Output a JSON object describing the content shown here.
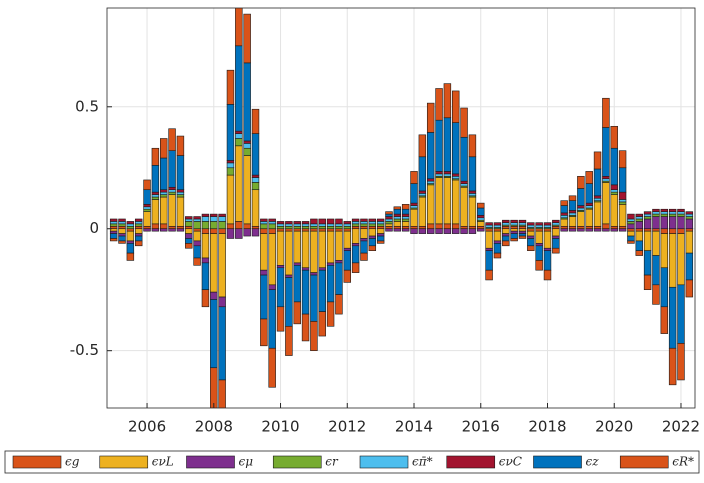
{
  "chart_data": {
    "type": "stacked-bar",
    "grid": true,
    "xlim": [
      2004.8,
      2022.42
    ],
    "ylim": [
      -0.735,
      0.905
    ],
    "xticks": [
      2006,
      2008,
      2010,
      2012,
      2014,
      2016,
      2018,
      2020,
      2022
    ],
    "yticks": [
      -0.5,
      0,
      0.5
    ],
    "x": [
      2005,
      2005.25,
      2005.5,
      2005.75,
      2006,
      2006.25,
      2006.5,
      2006.75,
      2007,
      2007.25,
      2007.5,
      2007.75,
      2008,
      2008.25,
      2008.5,
      2008.75,
      2009,
      2009.25,
      2009.5,
      2009.75,
      2010,
      2010.25,
      2010.5,
      2010.75,
      2011,
      2011.25,
      2011.5,
      2011.75,
      2012,
      2012.25,
      2012.5,
      2012.75,
      2013,
      2013.25,
      2013.5,
      2013.75,
      2014,
      2014.25,
      2014.5,
      2014.75,
      2015,
      2015.25,
      2015.5,
      2015.75,
      2016,
      2016.25,
      2016.5,
      2016.75,
      2017,
      2017.25,
      2017.5,
      2017.75,
      2018,
      2018.25,
      2018.5,
      2018.75,
      2019,
      2019.25,
      2019.5,
      2019.75,
      2020,
      2020.25,
      2020.5,
      2020.75,
      2021,
      2021.25,
      2021.5,
      2021.75,
      2022,
      2022.25
    ],
    "series": [
      {
        "name": "ϵg",
        "color": "#d95319",
        "values": [
          0.01,
          0.01,
          -0.01,
          0.01,
          0.01,
          0.02,
          0.02,
          0.01,
          0.01,
          0.01,
          -0.01,
          -0.02,
          -0.02,
          -0.02,
          0.02,
          0.03,
          0.02,
          0.01,
          -0.02,
          -0.02,
          -0.01,
          -0.01,
          -0.01,
          -0.01,
          -0.01,
          -0.01,
          -0.01,
          -0.01,
          -0.01,
          0.01,
          0.01,
          0.01,
          0.01,
          0.01,
          0.01,
          0.01,
          0.01,
          0.01,
          0.02,
          0.02,
          0.02,
          0.02,
          0.01,
          0.01,
          0.01,
          -0.01,
          -0.01,
          0.01,
          0.01,
          0.01,
          -0.01,
          -0.01,
          -0.01,
          0.01,
          0.01,
          0.01,
          0.01,
          0.01,
          0.01,
          0.02,
          0.01,
          0.01,
          -0.01,
          -0.01,
          -0.01,
          -0.01,
          -0.02,
          -0.02,
          -0.02,
          -0.01
        ]
      },
      {
        "name": "ϵνL",
        "color": "#edb120",
        "values": [
          -0.01,
          -0.02,
          -0.04,
          -0.02,
          0.06,
          0.1,
          0.11,
          0.13,
          0.12,
          -0.02,
          -0.04,
          -0.1,
          -0.24,
          -0.26,
          0.2,
          0.31,
          0.28,
          0.15,
          -0.15,
          -0.21,
          -0.14,
          -0.18,
          -0.13,
          -0.15,
          -0.17,
          -0.15,
          -0.13,
          -0.12,
          -0.07,
          -0.06,
          -0.04,
          -0.03,
          -0.02,
          0.01,
          0.02,
          0.02,
          0.07,
          0.12,
          0.16,
          0.19,
          0.19,
          0.18,
          0.16,
          0.12,
          0.02,
          -0.07,
          -0.04,
          -0.02,
          -0.01,
          -0.01,
          -0.02,
          -0.05,
          -0.07,
          -0.03,
          0.03,
          0.04,
          0.06,
          0.07,
          0.1,
          0.17,
          0.13,
          0.09,
          -0.02,
          -0.04,
          -0.08,
          -0.1,
          -0.14,
          -0.22,
          -0.21,
          -0.09
        ]
      },
      {
        "name": "ϵμ",
        "color": "#7e2f8e",
        "values": [
          -0.01,
          -0.01,
          -0.01,
          -0.01,
          -0.01,
          -0.01,
          -0.01,
          -0.01,
          -0.01,
          -0.02,
          -0.02,
          -0.02,
          -0.03,
          -0.04,
          -0.04,
          -0.04,
          -0.03,
          -0.03,
          -0.02,
          -0.02,
          -0.01,
          -0.01,
          -0.01,
          -0.01,
          -0.01,
          -0.01,
          -0.01,
          -0.01,
          -0.01,
          -0.01,
          -0.01,
          -0.01,
          -0.01,
          -0.01,
          -0.01,
          -0.01,
          -0.02,
          -0.02,
          -0.02,
          -0.02,
          -0.02,
          -0.02,
          -0.02,
          -0.02,
          -0.01,
          -0.01,
          -0.01,
          -0.01,
          -0.01,
          -0.01,
          -0.01,
          -0.01,
          -0.01,
          -0.01,
          -0.01,
          -0.01,
          -0.01,
          -0.01,
          -0.01,
          -0.01,
          -0.01,
          -0.01,
          0.02,
          0.03,
          0.04,
          0.05,
          0.05,
          0.05,
          0.05,
          0.04
        ]
      },
      {
        "name": "ϵr",
        "color": "#77ac30",
        "values": [
          0.01,
          0.01,
          0.01,
          0.01,
          0.01,
          0.01,
          0.01,
          0.01,
          0.01,
          0.02,
          0.03,
          0.03,
          0.03,
          0.03,
          0.03,
          0.03,
          0.03,
          0.03,
          0.02,
          0.02,
          0.01,
          0.01,
          0.01,
          0.01,
          0.01,
          0.01,
          0.01,
          0.01,
          0.01,
          0.01,
          0.01,
          0.01,
          0.01,
          0.01,
          0.01,
          0.01,
          0.005,
          0.005,
          0.005,
          0.005,
          0.005,
          0.005,
          0.005,
          0.005,
          0.005,
          0.005,
          0.005,
          0.005,
          0.005,
          0.005,
          0.005,
          0.005,
          0.005,
          0.005,
          0.005,
          0.005,
          0.005,
          0.005,
          0.005,
          0.005,
          0.01,
          0.01,
          0.01,
          0.01,
          0.01,
          0.01,
          0.01,
          0.01,
          0.01,
          0.01
        ]
      },
      {
        "name": "ϵπ̄*",
        "color": "#4dbeee",
        "values": [
          0.01,
          0.01,
          0.01,
          0.01,
          0.01,
          0.01,
          0.01,
          0.01,
          0.01,
          0.01,
          0.01,
          0.02,
          0.02,
          0.02,
          0.02,
          0.02,
          0.02,
          0.02,
          0.01,
          0.01,
          0.01,
          0.01,
          0.01,
          0.01,
          0.01,
          0.01,
          0.01,
          0.01,
          0.01,
          0.01,
          0.01,
          0.01,
          0.01,
          0.01,
          0.01,
          0.01,
          0.01,
          0.01,
          0.01,
          0.01,
          0.01,
          0.01,
          0.01,
          0.01,
          0.01,
          0.01,
          0.01,
          0.01,
          0.01,
          0.01,
          0.01,
          0.01,
          0.01,
          0.01,
          0.01,
          0.01,
          0.01,
          0.01,
          0.01,
          0.01,
          0.01,
          0.01,
          0.01,
          0.01,
          0.01,
          0.01,
          0.01,
          0.01,
          0.01,
          0.01
        ]
      },
      {
        "name": "ϵνC",
        "color": "#a2142f",
        "values": [
          0.01,
          0.01,
          0.01,
          0.01,
          0.01,
          0.01,
          0.01,
          0.01,
          0.01,
          0.01,
          0.01,
          0.01,
          0.01,
          0.01,
          0.01,
          0.01,
          0.01,
          0.01,
          0.01,
          0.01,
          0.01,
          0.01,
          0.01,
          0.01,
          0.02,
          0.02,
          0.02,
          0.02,
          0.01,
          0.01,
          0.01,
          0.01,
          0.01,
          0.01,
          0.01,
          0.01,
          0.01,
          0.01,
          0.01,
          0.01,
          0.01,
          0.01,
          0.01,
          0.01,
          0.01,
          0.01,
          0.01,
          0.01,
          0.01,
          0.01,
          0.01,
          0.01,
          0.01,
          0.01,
          0.01,
          0.01,
          0.01,
          0.01,
          0.01,
          0.01,
          0.02,
          0.03,
          0.02,
          0.01,
          0.01,
          0.01,
          0.01,
          0.01,
          0.01,
          0.01
        ]
      },
      {
        "name": "ϵz",
        "color": "#0072bd",
        "values": [
          -0.02,
          -0.02,
          -0.04,
          -0.02,
          0.06,
          0.11,
          0.13,
          0.15,
          0.14,
          -0.02,
          -0.05,
          -0.11,
          -0.28,
          -0.3,
          0.23,
          0.35,
          0.32,
          0.17,
          -0.18,
          -0.24,
          -0.16,
          -0.2,
          -0.15,
          -0.18,
          -0.19,
          -0.17,
          -0.15,
          -0.13,
          -0.08,
          -0.07,
          -0.05,
          -0.03,
          -0.02,
          0.01,
          0.02,
          0.02,
          0.08,
          0.14,
          0.19,
          0.21,
          0.22,
          0.21,
          0.18,
          0.14,
          0.03,
          -0.08,
          -0.04,
          -0.02,
          -0.02,
          -0.01,
          -0.03,
          -0.06,
          -0.08,
          -0.04,
          0.03,
          0.04,
          0.07,
          0.08,
          0.11,
          0.2,
          0.15,
          0.1,
          -0.02,
          -0.04,
          -0.1,
          -0.12,
          -0.16,
          -0.25,
          -0.24,
          -0.11
        ]
      },
      {
        "name": "ϵR*",
        "color": "#d95319",
        "values": [
          -0.01,
          -0.01,
          -0.03,
          -0.02,
          0.04,
          0.07,
          0.08,
          0.09,
          0.08,
          -0.02,
          -0.03,
          -0.07,
          -0.18,
          -0.19,
          0.14,
          0.22,
          0.2,
          0.1,
          -0.11,
          -0.16,
          -0.1,
          -0.12,
          -0.09,
          -0.11,
          -0.12,
          -0.1,
          -0.1,
          -0.08,
          -0.05,
          -0.04,
          -0.03,
          -0.02,
          -0.01,
          0.01,
          0.01,
          0.02,
          0.05,
          0.09,
          0.12,
          0.13,
          0.14,
          0.13,
          0.12,
          0.09,
          0.02,
          -0.04,
          -0.02,
          -0.02,
          -0.01,
          -0.01,
          -0.02,
          -0.04,
          -0.04,
          -0.02,
          0.02,
          0.02,
          0.05,
          0.05,
          0.07,
          0.12,
          0.09,
          0.07,
          -0.01,
          -0.02,
          -0.06,
          -0.08,
          -0.11,
          -0.15,
          -0.15,
          -0.07
        ]
      }
    ]
  }
}
